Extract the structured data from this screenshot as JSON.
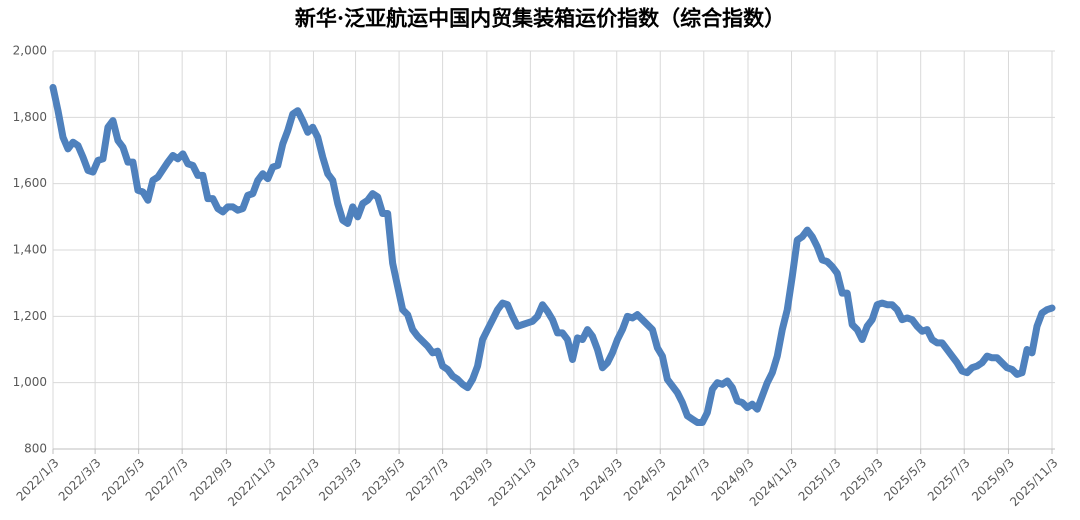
{
  "chart_data": {
    "type": "line",
    "title": "新华·泛亚航运中国内贸集装箱运价指数（综合指数）",
    "x": [
      "2022/1/3",
      "2022/1/10",
      "2022/1/17",
      "2022/1/24",
      "2022/1/31",
      "2022/2/7",
      "2022/2/14",
      "2022/2/21",
      "2022/2/28",
      "2022/3/7",
      "2022/3/14",
      "2022/3/21",
      "2022/3/28",
      "2022/4/4",
      "2022/4/11",
      "2022/4/18",
      "2022/4/25",
      "2022/5/2",
      "2022/5/9",
      "2022/5/16",
      "2022/5/23",
      "2022/5/30",
      "2022/6/13",
      "2022/6/20",
      "2022/6/27",
      "2022/7/4",
      "2022/7/11",
      "2022/7/18",
      "2022/7/25",
      "2022/8/1",
      "2022/8/8",
      "2022/8/15",
      "2022/8/22",
      "2022/8/29",
      "2022/9/5",
      "2022/9/12",
      "2022/9/19",
      "2022/9/26",
      "2022/10/3",
      "2022/10/10",
      "2022/10/17",
      "2022/10/24",
      "2022/10/31",
      "2022/11/7",
      "2022/11/14",
      "2022/11/21",
      "2022/11/28",
      "2022/12/5",
      "2022/12/12",
      "2022/12/19",
      "2022/12/26",
      "2023/1/2",
      "2023/1/9",
      "2023/1/16",
      "2023/1/23",
      "2023/1/30",
      "2023/2/6",
      "2023/2/13",
      "2023/2/20",
      "2023/2/27",
      "2023/3/6",
      "2023/3/13",
      "2023/3/20",
      "2023/3/27",
      "2023/4/3",
      "2023/4/10",
      "2023/4/17",
      "2023/4/24",
      "2023/5/1",
      "2023/5/8",
      "2023/5/15",
      "2023/5/22",
      "2023/5/29",
      "2023/6/5",
      "2023/6/12",
      "2023/6/19",
      "2023/6/26",
      "2023/7/3",
      "2023/7/10",
      "2023/7/17",
      "2023/7/24",
      "2023/7/31",
      "2023/8/7",
      "2023/8/14",
      "2023/8/21",
      "2023/8/28",
      "2023/9/4",
      "2023/9/11",
      "2023/9/18",
      "2023/9/25",
      "2023/10/2",
      "2023/10/9",
      "2023/10/16",
      "2023/10/23",
      "2023/10/30",
      "2023/11/6",
      "2023/11/13",
      "2023/11/20",
      "2023/11/27",
      "2023/12/4",
      "2023/12/11",
      "2023/12/18",
      "2023/12/25",
      "2024/1/1",
      "2024/1/8",
      "2024/1/15",
      "2024/1/22",
      "2024/1/29",
      "2024/2/5",
      "2024/2/12",
      "2024/2/19",
      "2024/2/26",
      "2024/3/4",
      "2024/3/11",
      "2024/3/18",
      "2024/3/25",
      "2024/4/1",
      "2024/4/8",
      "2024/4/15",
      "2024/4/22",
      "2024/4/29",
      "2024/5/6",
      "2024/5/13",
      "2024/5/20",
      "2024/5/27",
      "2024/6/3",
      "2024/6/10",
      "2024/6/17",
      "2024/6/24",
      "2024/7/1",
      "2024/7/8",
      "2024/7/15",
      "2024/7/22",
      "2024/7/29",
      "2024/8/5",
      "2024/8/12",
      "2024/8/19",
      "2024/8/26",
      "2024/9/2",
      "2024/9/9",
      "2024/9/16",
      "2024/9/23",
      "2024/9/30",
      "2024/10/7",
      "2024/10/14",
      "2024/10/21",
      "2024/10/28",
      "2024/11/4",
      "2024/11/11",
      "2024/11/18",
      "2024/11/25",
      "2024/12/2",
      "2024/12/9",
      "2024/12/16",
      "2024/12/23",
      "2024/12/30",
      "2025/1/6",
      "2025/1/13",
      "2025/1/20",
      "2025/1/27",
      "2025/2/3",
      "2025/2/10",
      "2025/2/17",
      "2025/2/24",
      "2025/3/3",
      "2025/3/10",
      "2025/3/17",
      "2025/3/24",
      "2025/3/31",
      "2025/4/7",
      "2025/4/14",
      "2025/4/21",
      "2025/4/28",
      "2025/5/5",
      "2025/5/12",
      "2025/5/19",
      "2025/5/26",
      "2025/6/2",
      "2025/6/9",
      "2025/6/16",
      "2025/6/23",
      "2025/6/30",
      "2025/7/7",
      "2025/7/14",
      "2025/7/21",
      "2025/7/28",
      "2025/8/4",
      "2025/8/11",
      "2025/8/18",
      "2025/8/25",
      "2025/9/1",
      "2025/9/8",
      "2025/9/15",
      "2025/9/22",
      "2025/9/29",
      "2025/10/6",
      "2025/10/13",
      "2025/10/20",
      "2025/10/27",
      "2025/11/3"
    ],
    "series": [
      {
        "name": "综合指数",
        "color": "#4f81bd",
        "values": [
          1890,
          1820,
          1740,
          1705,
          1725,
          1715,
          1680,
          1640,
          1635,
          1670,
          1675,
          1770,
          1790,
          1730,
          1710,
          1665,
          1665,
          1580,
          1575,
          1550,
          1610,
          1620,
          1665,
          1685,
          1675,
          1690,
          1660,
          1655,
          1625,
          1625,
          1555,
          1555,
          1525,
          1515,
          1530,
          1530,
          1520,
          1525,
          1565,
          1570,
          1610,
          1630,
          1615,
          1650,
          1655,
          1720,
          1760,
          1810,
          1820,
          1790,
          1755,
          1770,
          1740,
          1680,
          1630,
          1610,
          1540,
          1490,
          1480,
          1530,
          1500,
          1540,
          1550,
          1570,
          1560,
          1510,
          1510,
          1360,
          1290,
          1220,
          1205,
          1160,
          1140,
          1125,
          1110,
          1090,
          1095,
          1050,
          1040,
          1020,
          1010,
          995,
          985,
          1010,
          1050,
          1130,
          1160,
          1190,
          1220,
          1240,
          1235,
          1200,
          1170,
          1175,
          1180,
          1185,
          1200,
          1235,
          1215,
          1190,
          1150,
          1150,
          1130,
          1070,
          1135,
          1130,
          1160,
          1140,
          1100,
          1045,
          1060,
          1090,
          1130,
          1160,
          1200,
          1195,
          1205,
          1190,
          1175,
          1160,
          1105,
          1080,
          1010,
          990,
          970,
          940,
          900,
          890,
          880,
          880,
          910,
          980,
          1000,
          995,
          1005,
          985,
          945,
          940,
          925,
          935,
          920,
          960,
          1000,
          1030,
          1080,
          1160,
          1220,
          1320,
          1430,
          1440,
          1460,
          1440,
          1410,
          1370,
          1365,
          1350,
          1330,
          1270,
          1270,
          1175,
          1160,
          1130,
          1170,
          1190,
          1235,
          1240,
          1235,
          1235,
          1220,
          1190,
          1195,
          1190,
          1170,
          1155,
          1160,
          1130,
          1120,
          1120,
          1100,
          1080,
          1060,
          1035,
          1030,
          1045,
          1050,
          1060,
          1080,
          1075,
          1075,
          1060,
          1045,
          1040,
          1025,
          1030,
          1100,
          1090,
          1170,
          1210,
          1220,
          1225
        ]
      }
    ],
    "xlim": [
      "2022/1/3",
      "2025/11/3"
    ],
    "xticks": [
      "2022/1/3",
      "2022/3/3",
      "2022/5/3",
      "2022/7/3",
      "2022/9/3",
      "2022/11/3",
      "2023/1/3",
      "2023/3/3",
      "2023/5/3",
      "2023/7/3",
      "2023/9/3",
      "2023/11/3",
      "2024/1/3",
      "2024/3/3",
      "2024/5/3",
      "2024/7/3",
      "2024/9/3",
      "2024/11/3",
      "2025/1/3",
      "2025/3/3",
      "2025/5/3",
      "2025/7/3",
      "2025/9/3",
      "2025/11/3"
    ],
    "ylim": [
      800,
      2000
    ],
    "yticks": [
      800,
      {
        "value": 1000,
        "label": "1,000"
      },
      {
        "value": 1200,
        "label": "1,200"
      },
      {
        "value": 1400,
        "label": "1,400"
      },
      {
        "value": 1600,
        "label": "1,600"
      },
      {
        "value": 1800,
        "label": "1,800"
      },
      {
        "value": 2000,
        "label": "2,000"
      }
    ],
    "grid": true
  }
}
